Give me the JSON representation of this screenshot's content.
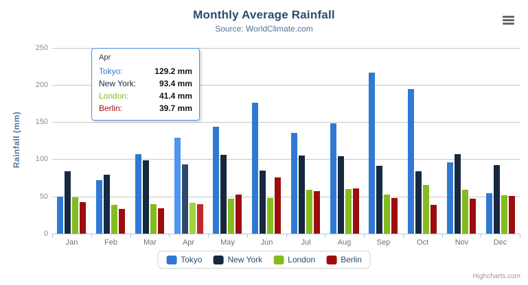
{
  "header": {
    "title": "Monthly Average Rainfall",
    "subtitle": "Source: WorldClimate.com"
  },
  "credits": {
    "text": "Highcharts.com"
  },
  "menu": {
    "icon": "hamburger-menu-icon"
  },
  "axes": {
    "y_title": "Rainfall (mm)",
    "y_ticks": [
      0,
      50,
      100,
      150,
      200,
      250
    ]
  },
  "colors": {
    "title_text": "#274b6d",
    "subtitle_text": "#4d7398",
    "gridline": "#c7c7c7",
    "axis_line": "#aac6e1",
    "tooltip_border": "#4a90e2"
  },
  "chart_data": {
    "type": "bar",
    "title": "Monthly Average Rainfall",
    "subtitle": "Source: WorldClimate.com",
    "xlabel": "",
    "ylabel": "Rainfall (mm)",
    "ylim": [
      0,
      250
    ],
    "ytick_interval": 50,
    "grid": true,
    "legend_position": "bottom",
    "hover_category": "Apr",
    "categories": [
      "Jan",
      "Feb",
      "Mar",
      "Apr",
      "May",
      "Jun",
      "Jul",
      "Aug",
      "Sep",
      "Oct",
      "Nov",
      "Dec"
    ],
    "series": [
      {
        "name": "Tokyo",
        "color": "#3079d3",
        "hover_color": "#4e94f0",
        "values": [
          49.9,
          71.5,
          106.4,
          129.2,
          144.0,
          176.0,
          135.6,
          148.5,
          216.4,
          194.1,
          95.6,
          54.4
        ]
      },
      {
        "name": "New York",
        "color": "#16293f",
        "hover_color": "#2f4a68",
        "values": [
          83.6,
          78.8,
          98.5,
          93.4,
          106.0,
          84.5,
          105.0,
          104.3,
          91.2,
          83.5,
          106.6,
          92.3
        ]
      },
      {
        "name": "London",
        "color": "#84bb1f",
        "hover_color": "#9fd63a",
        "values": [
          48.9,
          38.8,
          39.3,
          41.4,
          47.0,
          48.3,
          59.0,
          59.6,
          52.4,
          65.2,
          59.3,
          51.2
        ]
      },
      {
        "name": "Berlin",
        "color": "#9d0d0d",
        "hover_color": "#c02a2a",
        "values": [
          42.4,
          33.2,
          34.5,
          39.7,
          52.6,
          75.5,
          57.4,
          60.4,
          47.6,
          39.1,
          46.8,
          51.1
        ]
      }
    ]
  },
  "tooltip": {
    "header": "Apr",
    "rows": [
      {
        "label": "Tokyo:",
        "value": "129.2 mm",
        "color": "#3079d3"
      },
      {
        "label": "New York:",
        "value": "93.4 mm",
        "color": "#16293f"
      },
      {
        "label": "London:",
        "value": "41.4 mm",
        "color": "#84bb1f"
      },
      {
        "label": "Berlin:",
        "value": "39.7 mm",
        "color": "#9d0d0d"
      }
    ]
  }
}
